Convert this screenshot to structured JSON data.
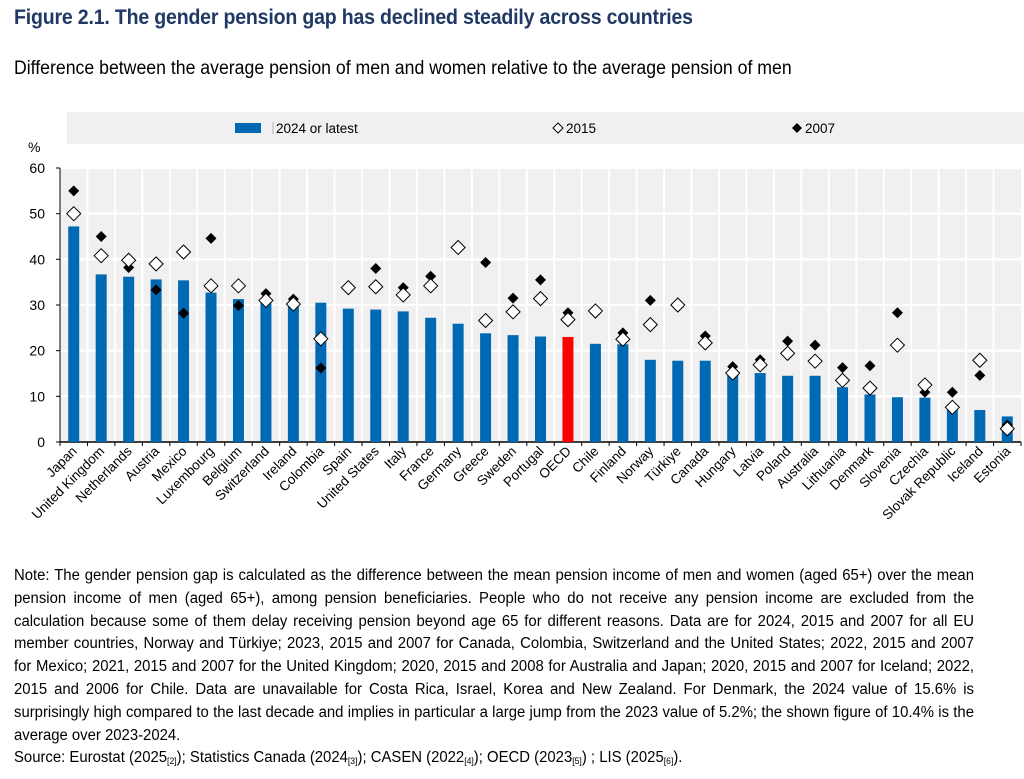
{
  "header": {
    "title": "Figure 2.1. The gender pension gap has declined steadily across countries",
    "subtitle": "Difference between the average pension of men and women relative to the average pension of men"
  },
  "colors": {
    "bar": "#0069b4",
    "highlight_bar": "#ff0000",
    "plot_bg": "#f0f0f0",
    "title": "#1f3864"
  },
  "chart_data": {
    "type": "bar",
    "title": "Difference between the average pension of men and women relative to the average pension of men",
    "xlabel": "",
    "ylabel": "%",
    "ylim": [
      0,
      60
    ],
    "yticks": [
      0,
      10,
      20,
      30,
      40,
      50,
      60
    ],
    "grid": true,
    "legend_position": "top",
    "highlight_category": "OECD",
    "categories": [
      "Japan",
      "United Kingdom",
      "Netherlands",
      "Austria",
      "Mexico",
      "Luxembourg",
      "Belgium",
      "Switzerland",
      "Ireland",
      "Colombia",
      "Spain",
      "United States",
      "Italy",
      "France",
      "Germany",
      "Greece",
      "Sweden",
      "Portugal",
      "OECD",
      "Chile",
      "Finland",
      "Norway",
      "Türkiye",
      "Canada",
      "Hungary",
      "Latvia",
      "Poland",
      "Australia",
      "Lithuania",
      "Denmark",
      "Slovenia",
      "Czechia",
      "Slovak Republic",
      "Iceland",
      "Estonia"
    ],
    "series": [
      {
        "name": "2024 or latest",
        "marker": "bar",
        "values": [
          47.2,
          36.7,
          36.2,
          35.6,
          35.4,
          32.7,
          31.3,
          30.5,
          30.0,
          30.5,
          29.2,
          29.0,
          28.6,
          27.2,
          25.9,
          23.8,
          23.4,
          23.1,
          23.0,
          21.5,
          21.4,
          18.0,
          17.8,
          17.8,
          14.9,
          15.1,
          14.5,
          14.5,
          12.0,
          10.4,
          9.8,
          9.7,
          7.5,
          7.0,
          5.6
        ]
      },
      {
        "name": "2015",
        "marker": "hollow-diamond",
        "values": [
          50.0,
          40.8,
          39.8,
          39.0,
          41.6,
          34.2,
          34.2,
          31.0,
          30.2,
          22.6,
          33.8,
          34.0,
          32.2,
          34.2,
          42.6,
          26.6,
          28.5,
          31.4,
          26.8,
          28.7,
          22.5,
          25.7,
          30.0,
          21.7,
          15.1,
          16.9,
          19.4,
          17.7,
          13.5,
          11.8,
          21.2,
          12.5,
          7.6,
          17.9,
          2.9
        ]
      },
      {
        "name": "2007",
        "marker": "filled-diamond",
        "values": [
          55.0,
          45.0,
          38.2,
          33.3,
          28.2,
          44.6,
          29.9,
          32.5,
          31.3,
          16.2,
          34.0,
          38.0,
          33.8,
          36.3,
          42.7,
          39.3,
          31.5,
          35.5,
          28.3,
          28.2,
          23.9,
          31.0,
          29.7,
          23.2,
          16.5,
          18.0,
          22.1,
          21.2,
          16.3,
          16.7,
          28.3,
          10.9,
          10.9,
          14.6,
          3.7
        ]
      }
    ]
  },
  "note": {
    "text": "Note: The gender pension gap is calculated as the difference between the mean pension income of men and women (aged 65+) over the mean pension income of men (aged 65+), among pension beneficiaries. People who do not receive any pension income are excluded from the calculation because some of them delay receiving pension beyond age 65 for different reasons. Data are for 2024, 2015 and 2007 for all EU member countries, Norway and Türkiye; 2023, 2015 and 2007 for Canada, Colombia, Switzerland and the United States; 2022, 2015 and 2007 for Mexico; 2021, 2015 and 2007 for the United Kingdom; 2020, 2015 and 2008 for Australia and Japan; 2020, 2015 and 2007 for Iceland; 2022, 2015 and 2006 for Chile. Data are unavailable for Costa Rica, Israel, Korea and New Zealand. For Denmark, the 2024 value of 15.6% is surprisingly high compared to the last decade and implies in particular a large jump from the 2023 value of 5.2%; the shown figure of 10.4% is the average over 2023-2024.",
    "source_prefix": "Source: ",
    "sources": [
      {
        "name": "Eurostat (2025",
        "ref": "[2]",
        "suffix": "); "
      },
      {
        "name": "Statistics Canada (2024",
        "ref": "[3]",
        "suffix": "); "
      },
      {
        "name": "CASEN (2022",
        "ref": "[4]",
        "suffix": "); "
      },
      {
        "name": "OECD (2023",
        "ref": "[5]",
        "suffix": ") ; "
      },
      {
        "name": "LIS (2025",
        "ref": "[6]",
        "suffix": ")."
      }
    ]
  }
}
